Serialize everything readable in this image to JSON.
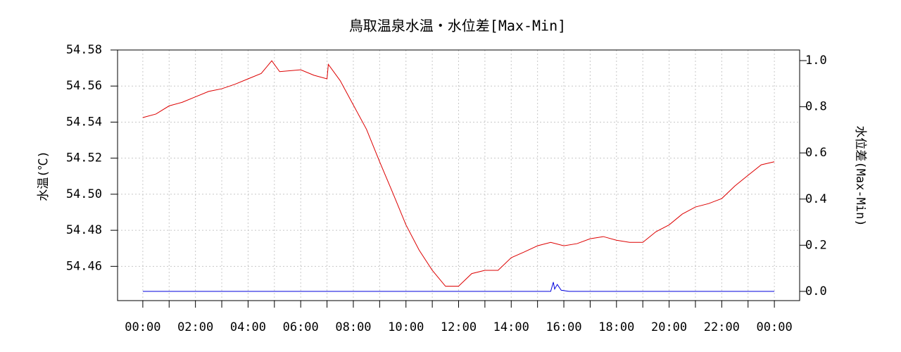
{
  "chart_data": {
    "type": "line",
    "title": "鳥取温泉水温・水位差[Max-Min]",
    "y_label": "水温(℃)",
    "y2_label": "水位差(Max-Min)",
    "xlim": [
      -0.96,
      24.96
    ],
    "xticks": [
      {
        "value": 0,
        "label": "00:00"
      },
      {
        "value": 2,
        "label": "02:00"
      },
      {
        "value": 4,
        "label": "04:00"
      },
      {
        "value": 6,
        "label": "06:00"
      },
      {
        "value": 8,
        "label": "08:00"
      },
      {
        "value": 10,
        "label": "10:00"
      },
      {
        "value": 12,
        "label": "12:00"
      },
      {
        "value": 14,
        "label": "14:00"
      },
      {
        "value": 16,
        "label": "16:00"
      },
      {
        "value": 18,
        "label": "18:00"
      },
      {
        "value": 20,
        "label": "20:00"
      },
      {
        "value": 22,
        "label": "22:00"
      },
      {
        "value": 24,
        "label": "00:00"
      }
    ],
    "xminor": [
      1,
      3,
      5,
      7,
      9,
      11,
      13,
      15,
      17,
      19,
      21,
      23
    ],
    "ylim": [
      54.441,
      54.58
    ],
    "yticks": [
      54.46,
      54.48,
      {
        "value": 54.5,
        "label": "54.50"
      },
      54.52,
      54.54,
      54.56,
      54.58
    ],
    "y2lim": [
      -0.04,
      1.046
    ],
    "y2ticks": [
      {
        "value": 0,
        "label": "0.0"
      },
      0.2,
      0.4,
      0.6,
      0.8,
      {
        "value": 1,
        "label": "1.0"
      }
    ],
    "grid": true,
    "series": [
      {
        "name": "水温",
        "color": "#dd0000",
        "x": [
          0,
          0.5,
          1,
          1.5,
          2,
          2.5,
          3,
          3.5,
          4,
          4.5,
          4.9,
          5.2,
          6,
          6.5,
          7,
          7.05,
          7.5,
          8,
          8.5,
          9,
          9.5,
          10,
          10.5,
          11,
          11.5,
          12,
          12.5,
          13,
          13.5,
          14,
          14.5,
          15,
          15.5,
          16,
          16.5,
          17,
          17.5,
          18,
          18.5,
          19,
          19.5,
          20,
          20.5,
          21,
          21.5,
          22,
          22.5,
          23,
          23.5,
          24
        ],
        "values": [
          54.5425,
          54.5445,
          54.549,
          54.551,
          54.554,
          54.557,
          54.5585,
          54.561,
          54.564,
          54.567,
          54.574,
          54.568,
          54.569,
          54.566,
          54.564,
          54.572,
          54.563,
          54.5495,
          54.536,
          54.518,
          54.5007,
          54.483,
          54.469,
          54.4578,
          54.449,
          54.449,
          54.456,
          54.4578,
          54.4578,
          54.4648,
          54.468,
          54.4714,
          54.4733,
          54.4714,
          54.4726,
          54.4753,
          54.4765,
          54.4745,
          54.4733,
          54.4733,
          54.4792,
          54.483,
          54.489,
          54.4929,
          54.4948,
          54.4976,
          54.5046,
          54.5105,
          54.5163,
          54.518
        ]
      },
      {
        "name": "水位差",
        "color": "#0000dd",
        "axis": "y2",
        "x": [
          0,
          15.5,
          15.6,
          15.65,
          15.75,
          15.9,
          16.2,
          24
        ],
        "values": [
          0,
          0,
          0.04,
          0.01,
          0.03,
          0.005,
          0,
          0
        ]
      }
    ]
  }
}
